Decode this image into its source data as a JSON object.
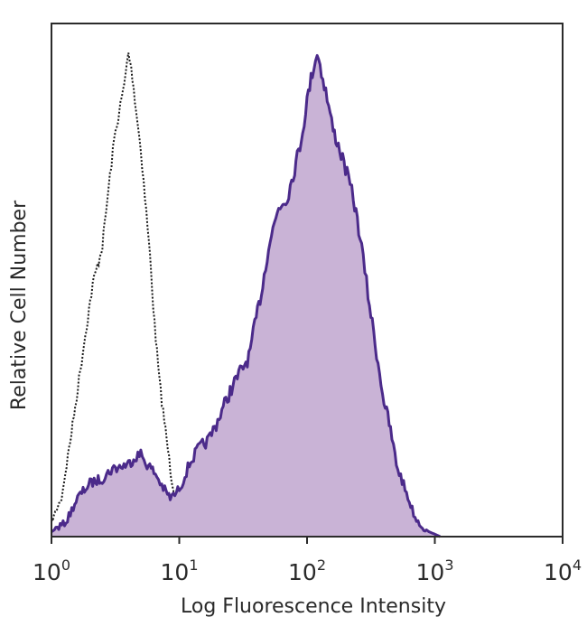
{
  "chart_data": {
    "type": "area",
    "xscale": "log",
    "xlim": [
      1,
      10000
    ],
    "ylim": [
      0,
      100
    ],
    "xlabel": "Log Fluorescence Intensity",
    "ylabel": "Relative Cell Number",
    "xticks": [
      {
        "base": "10",
        "exp": "0",
        "value": 1
      },
      {
        "base": "10",
        "exp": "1",
        "value": 10
      },
      {
        "base": "10",
        "exp": "2",
        "value": 100
      },
      {
        "base": "10",
        "exp": "3",
        "value": 1000
      },
      {
        "base": "10",
        "exp": "4",
        "value": 10000
      }
    ],
    "grid": false,
    "series": [
      {
        "role": "isotype-control",
        "style": "dotted",
        "color": "#1a1a1a",
        "x": [
          1.0,
          1.2,
          1.5,
          1.8,
          2.1,
          2.5,
          2.8,
          3.1,
          3.4,
          3.7,
          4.0,
          4.3,
          4.6,
          5.0,
          5.4,
          5.9,
          6.4,
          7.0,
          7.8,
          8.7,
          9.8,
          11,
          13,
          16,
          20,
          30
        ],
        "y": [
          3,
          8,
          25,
          40,
          52,
          60,
          72,
          82,
          88,
          93,
          100,
          95,
          88,
          80,
          70,
          58,
          44,
          32,
          22,
          12,
          5,
          3,
          1.5,
          0.5,
          0.2,
          0
        ]
      },
      {
        "role": "stained",
        "style": "filled",
        "color": "#4b2a8a",
        "fill": "#c9b3d6",
        "x": [
          1.0,
          1.3,
          1.6,
          2.0,
          2.5,
          3.0,
          3.5,
          4.0,
          4.5,
          5.0,
          5.6,
          6.5,
          7.5,
          8.5,
          9.5,
          10.5,
          12,
          14,
          17,
          20,
          25,
          30,
          35,
          40,
          45,
          50,
          60,
          70,
          80,
          90,
          100,
          110,
          120,
          140,
          160,
          180,
          200,
          230,
          260,
          300,
          350,
          400,
          450,
          500,
          600,
          700,
          800,
          900,
          1000,
          1100
        ],
        "y": [
          1,
          3,
          8,
          11,
          12,
          14,
          14.5,
          15,
          16.5,
          17,
          15,
          13,
          10,
          8,
          9,
          11,
          15,
          18,
          20,
          24,
          30,
          34,
          37,
          45,
          52,
          60,
          68,
          70,
          76,
          82,
          90,
          96,
          100,
          92,
          84,
          80,
          76,
          70,
          62,
          50,
          38,
          28,
          22,
          15,
          9,
          4,
          2,
          1,
          0.5,
          0
        ]
      }
    ]
  }
}
